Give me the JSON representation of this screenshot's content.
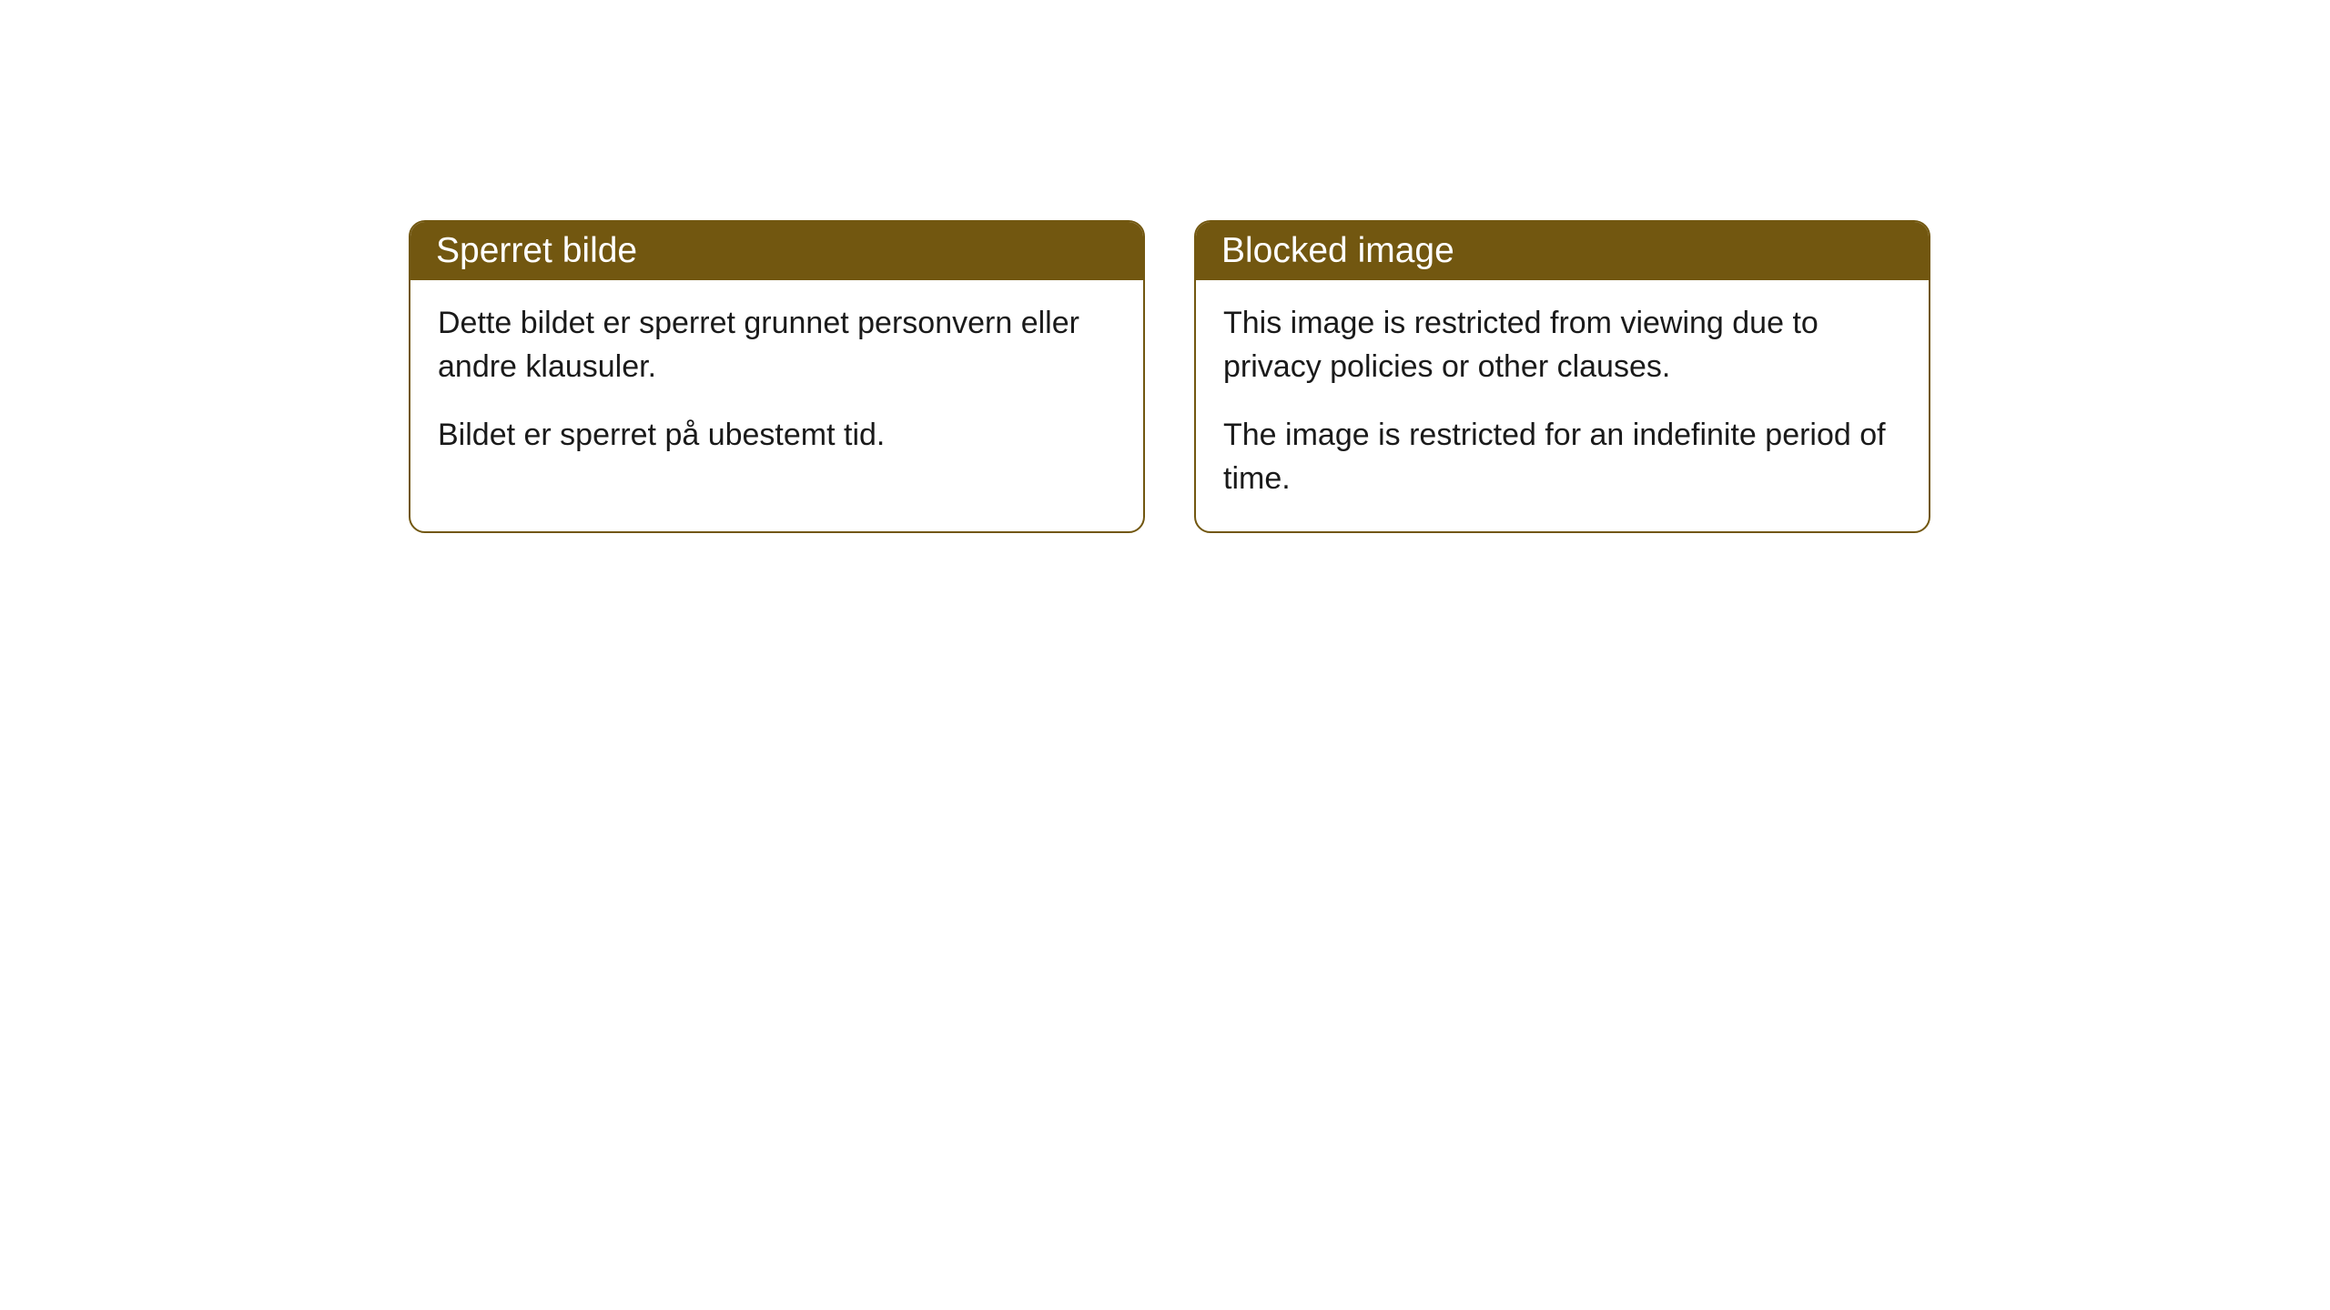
{
  "cards": [
    {
      "title": "Sperret bilde",
      "paragraph1": "Dette bildet er sperret grunnet personvern eller andre klausuler.",
      "paragraph2": "Bildet er sperret på ubestemt tid."
    },
    {
      "title": "Blocked image",
      "paragraph1": "This image is restricted from viewing due to privacy policies or other clauses.",
      "paragraph2": "The image is restricted for an indefinite period of time."
    }
  ],
  "styling": {
    "header_background": "#725710",
    "header_text_color": "#ffffff",
    "border_color": "#725710",
    "body_background": "#ffffff",
    "body_text_color": "#1a1a1a",
    "border_radius": 18,
    "title_fontsize": 39,
    "body_fontsize": 34
  }
}
